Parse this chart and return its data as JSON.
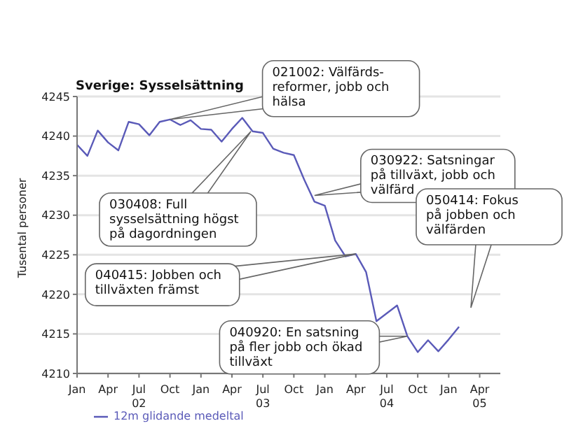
{
  "chart_data": {
    "type": "line",
    "title": "Sverige: Sysselsättning",
    "ylabel": "Tusental personer",
    "x": [
      "2002-01",
      "2002-02",
      "2002-03",
      "2002-04",
      "2002-05",
      "2002-06",
      "2002-07",
      "2002-08",
      "2002-09",
      "2002-10",
      "2002-11",
      "2002-12",
      "2003-01",
      "2003-02",
      "2003-03",
      "2003-04",
      "2003-05",
      "2003-06",
      "2003-07",
      "2003-08",
      "2003-09",
      "2003-10",
      "2003-11",
      "2003-12",
      "2004-01",
      "2004-02",
      "2004-03",
      "2004-04",
      "2004-05",
      "2004-06",
      "2004-08",
      "2004-09",
      "2004-10",
      "2004-11",
      "2004-12",
      "2005-01",
      "2005-02"
    ],
    "series": [
      {
        "name": "12m glidande medeltal",
        "color": "#5a5ab8",
        "values": [
          4238.9,
          4237.5,
          4240.7,
          4239.2,
          4238.2,
          4241.8,
          4241.5,
          4240.1,
          4241.8,
          4242.1,
          4241.4,
          4242,
          4240.9,
          4240.8,
          4239.3,
          4240.9,
          4242.3,
          4240.6,
          4240.4,
          4238.4,
          4237.9,
          4237.6,
          4234.5,
          4231.7,
          4231.2,
          4226.8,
          4224.8,
          4225.1,
          4222.8,
          4216.6,
          4218.6,
          4214.7,
          4212.7,
          4214.2,
          4212.8,
          4214.3,
          4215.9
        ]
      }
    ],
    "xlim": [
      "2002-01",
      "2005-06"
    ],
    "xticks": [
      {
        "value": "2002-01",
        "label": "Jan"
      },
      {
        "value": "2002-04",
        "label": "Apr"
      },
      {
        "value": "2002-07",
        "label": "Jul\n02"
      },
      {
        "value": "2002-10",
        "label": "Oct"
      },
      {
        "value": "2003-01",
        "label": "Jan"
      },
      {
        "value": "2003-04",
        "label": "Apr"
      },
      {
        "value": "2003-07",
        "label": "Jul\n03"
      },
      {
        "value": "2003-10",
        "label": "Oct"
      },
      {
        "value": "2004-01",
        "label": "Jan"
      },
      {
        "value": "2004-04",
        "label": "Apr"
      },
      {
        "value": "2004-07",
        "label": "Jul\n04"
      },
      {
        "value": "2004-10",
        "label": "Oct"
      },
      {
        "value": "2005-01",
        "label": "Jan"
      },
      {
        "value": "2005-04",
        "label": "Apr\n05"
      }
    ],
    "ylim": [
      4210,
      4245
    ],
    "yticks": [
      4210,
      4215,
      4220,
      4225,
      4230,
      4235,
      4240,
      4245
    ],
    "grid": "y",
    "legend": "bottom left",
    "annotations": [
      {
        "text": "021002: Välfärds-\nreformer, jobb och\nhälsa",
        "x": "2002-10",
        "y": 4242.1
      },
      "030408: Full\nsysselsättning högst\npå dagordningen",
      {
        "text": "030922: Satsningar\npå tillväxt, jobb och\nvälfärd",
        "x": "2003-12",
        "y": 4232.5
      },
      {
        "text": "040415: Jobben och\ntillväxten främst",
        "x": "2004-04",
        "y": 4225.1
      },
      {
        "text": "040920: En satsning\npå fler jobb och ökad\ntillväxt",
        "x": "2004-09",
        "y": 4214.7
      },
      "050414: Fokus\npå jobben och\nvälfärden"
    ]
  }
}
